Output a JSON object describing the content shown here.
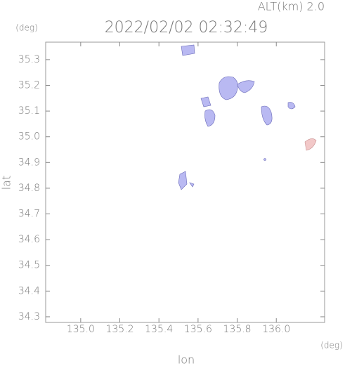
{
  "chart_data": {
    "type": "map",
    "title": "2022/02/02 02:32:49",
    "altitude_label": "ALT(km) 2.0",
    "x_label": "lon",
    "x_unit": "(deg)",
    "y_label": "lat",
    "y_unit": "(deg)",
    "xlim": [
      134.821,
      136.247
    ],
    "ylim": [
      34.278,
      35.368
    ],
    "xticks": [
      {
        "value": 135.0,
        "label": "135.0"
      },
      135.2,
      135.4,
      135.6,
      135.8,
      {
        "value": 136.0,
        "label": "136.0"
      }
    ],
    "yticks": [
      34.3,
      34.4,
      34.5,
      34.6,
      34.7,
      34.8,
      34.9,
      {
        "value": 35.0,
        "label": "35.0"
      },
      35.1,
      35.2,
      35.3
    ]
  }
}
